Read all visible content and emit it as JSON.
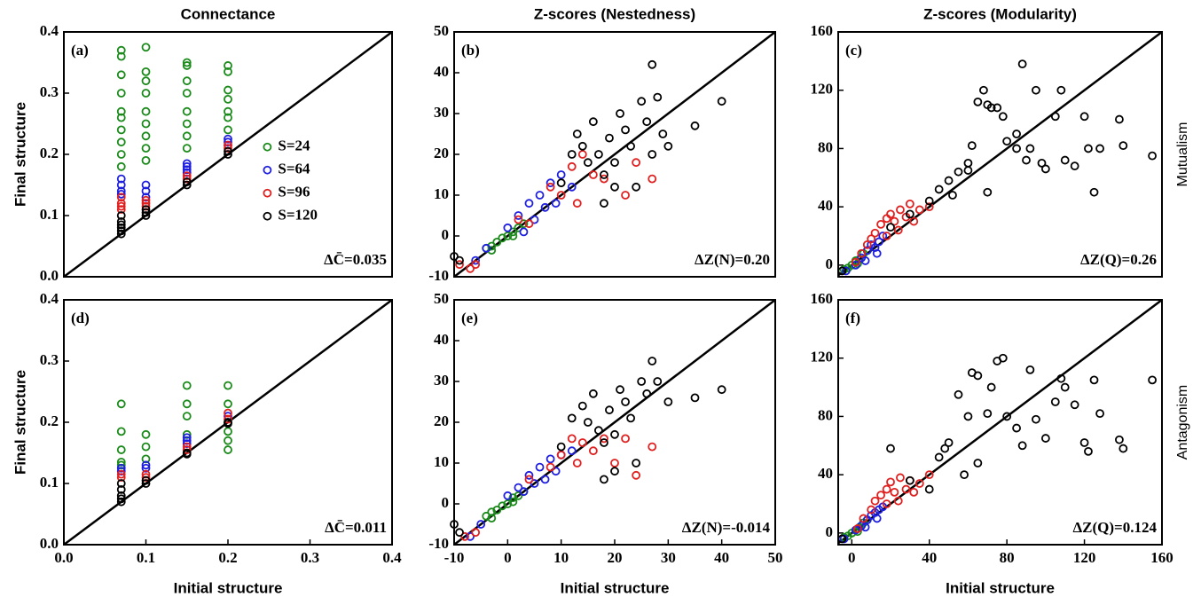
{
  "chart_data": [
    {
      "type": "scatter",
      "title": "Connectance",
      "panel_label": "(a)",
      "annotation": "ΔC̄=0.035",
      "ylabel": "Final structure",
      "xlim": [
        0,
        0.4
      ],
      "ylim": [
        0,
        0.4
      ],
      "yticks": [
        {
          "value": 0,
          "label": "0.0"
        },
        0.1,
        0.2,
        0.3,
        0.4
      ],
      "legend": "center right",
      "series": [
        {
          "name": "S=24",
          "color": "#1a8a1a",
          "x": [
            0.07,
            0.07,
            0.07,
            0.07,
            0.07,
            0.07,
            0.07,
            0.07,
            0.07,
            0.07,
            0.1,
            0.1,
            0.1,
            0.1,
            0.1,
            0.1,
            0.1,
            0.1,
            0.1,
            0.15,
            0.15,
            0.15,
            0.15,
            0.15,
            0.15,
            0.15,
            0.15,
            0.2,
            0.2,
            0.2,
            0.2,
            0.2,
            0.2,
            0.2
          ],
          "values": [
            0.37,
            0.36,
            0.33,
            0.3,
            0.27,
            0.26,
            0.24,
            0.22,
            0.2,
            0.18,
            0.375,
            0.335,
            0.32,
            0.3,
            0.27,
            0.25,
            0.23,
            0.21,
            0.19,
            0.35,
            0.345,
            0.32,
            0.3,
            0.27,
            0.25,
            0.23,
            0.21,
            0.345,
            0.335,
            0.305,
            0.29,
            0.27,
            0.26,
            0.24
          ]
        },
        {
          "name": "S=64",
          "color": "#1f1fe0",
          "x": [
            0.07,
            0.07,
            0.07,
            0.07,
            0.1,
            0.1,
            0.1,
            0.15,
            0.15,
            0.15,
            0.15,
            0.2,
            0.2,
            0.2
          ],
          "values": [
            0.16,
            0.15,
            0.14,
            0.135,
            0.15,
            0.14,
            0.13,
            0.185,
            0.18,
            0.175,
            0.17,
            0.225,
            0.22,
            0.215
          ]
        },
        {
          "name": "S=96",
          "color": "#e01f1f",
          "x": [
            0.07,
            0.07,
            0.07,
            0.07,
            0.1,
            0.1,
            0.1,
            0.15,
            0.15,
            0.2,
            0.2
          ],
          "values": [
            0.13,
            0.12,
            0.115,
            0.11,
            0.125,
            0.12,
            0.115,
            0.165,
            0.16,
            0.215,
            0.21
          ]
        },
        {
          "name": "S=120",
          "color": "#000000",
          "x": [
            0.07,
            0.07,
            0.07,
            0.07,
            0.07,
            0.07,
            0.1,
            0.1,
            0.1,
            0.15,
            0.15,
            0.2,
            0.2
          ],
          "values": [
            0.1,
            0.09,
            0.085,
            0.08,
            0.075,
            0.07,
            0.11,
            0.105,
            0.1,
            0.155,
            0.15,
            0.205,
            0.2
          ]
        }
      ]
    },
    {
      "type": "scatter",
      "title": "Z-scores (Nestedness)",
      "panel_label": "(b)",
      "annotation": "ΔZ(N)=0.20",
      "xlim": [
        -10,
        50
      ],
      "ylim": [
        -10,
        50
      ],
      "yticks": [
        -10,
        0,
        10,
        20,
        30,
        40,
        50
      ],
      "series": [
        {
          "color": "#1a8a1a",
          "x": [
            -4,
            -3,
            -2,
            -1,
            0,
            1,
            2,
            3,
            -3,
            1
          ],
          "values": [
            -3,
            -2.5,
            -1.5,
            -0.5,
            0,
            1,
            2,
            3,
            -3.5,
            0
          ]
        },
        {
          "color": "#1f1fe0",
          "x": [
            -6,
            -4,
            0,
            2,
            4,
            6,
            8,
            10,
            5,
            7,
            3,
            9,
            12
          ],
          "values": [
            -6,
            -3,
            2,
            5,
            8,
            10,
            13,
            15,
            4,
            7,
            1,
            8,
            12
          ]
        },
        {
          "color": "#e01f1f",
          "x": [
            -9,
            -7,
            -6,
            2,
            4,
            8,
            10,
            12,
            14,
            16,
            13,
            18,
            24,
            27,
            22
          ],
          "values": [
            -7,
            -8,
            -7,
            4,
            3,
            12,
            10,
            17,
            20,
            15,
            8,
            14,
            18,
            14,
            10
          ]
        },
        {
          "color": "#000000",
          "x": [
            -10,
            -9,
            10,
            12,
            13,
            14,
            15,
            16,
            17,
            18,
            19,
            20,
            21,
            22,
            23,
            24,
            25,
            26,
            27,
            28,
            29,
            30,
            35,
            40,
            27,
            20,
            18
          ],
          "values": [
            -5,
            -6,
            13,
            20,
            25,
            22,
            18,
            28,
            20,
            15,
            24,
            18,
            30,
            26,
            22,
            12,
            33,
            28,
            20,
            34,
            25,
            22,
            27,
            33,
            42,
            12,
            8
          ]
        }
      ]
    },
    {
      "type": "scatter",
      "title": "Z-scores (Modularity)",
      "panel_label": "(c)",
      "annotation": "ΔZ(Q)=0.26",
      "row_label": "Mutualism",
      "xlim": [
        -7,
        160
      ],
      "ylim": [
        -8,
        160
      ],
      "yticks": [
        0,
        40,
        80,
        120,
        160
      ],
      "series": [
        {
          "color": "#1a8a1a",
          "x": [
            -4,
            -2,
            0,
            2,
            4,
            6,
            8,
            3
          ],
          "values": [
            -3,
            -2,
            0,
            3,
            4,
            8,
            10,
            1
          ]
        },
        {
          "color": "#1f1fe0",
          "x": [
            -3,
            2,
            5,
            8,
            10,
            12,
            14,
            16,
            7,
            13
          ],
          "values": [
            -4,
            0,
            5,
            10,
            14,
            12,
            16,
            20,
            3,
            8
          ]
        },
        {
          "color": "#e01f1f",
          "x": [
            2,
            5,
            8,
            10,
            12,
            15,
            18,
            20,
            22,
            25,
            28,
            30,
            35,
            40,
            18,
            24,
            32
          ],
          "values": [
            2,
            8,
            14,
            18,
            22,
            28,
            32,
            35,
            30,
            38,
            33,
            42,
            38,
            40,
            20,
            24,
            30
          ]
        },
        {
          "color": "#000000",
          "x": [
            -5,
            20,
            30,
            40,
            45,
            50,
            55,
            60,
            62,
            65,
            68,
            70,
            72,
            75,
            78,
            80,
            85,
            88,
            90,
            92,
            95,
            98,
            100,
            105,
            108,
            110,
            115,
            120,
            122,
            125,
            128,
            138,
            140,
            155,
            60,
            52,
            70,
            85
          ],
          "values": [
            -4,
            26,
            35,
            44,
            52,
            58,
            64,
            65,
            82,
            112,
            120,
            110,
            108,
            108,
            102,
            85,
            80,
            138,
            72,
            80,
            120,
            70,
            66,
            102,
            120,
            72,
            68,
            102,
            80,
            50,
            80,
            100,
            82,
            75,
            70,
            48,
            50,
            90
          ]
        }
      ]
    },
    {
      "type": "scatter",
      "panel_label": "(d)",
      "annotation": "ΔC̄=0.011",
      "ylabel": "Final structure",
      "xlabel": "Initial structure",
      "xlim": [
        0,
        0.4
      ],
      "ylim": [
        0,
        0.4
      ],
      "xticks": [
        {
          "value": 0,
          "label": "0.0"
        },
        0.1,
        0.2,
        0.3,
        0.4
      ],
      "yticks": [
        {
          "value": 0,
          "label": "0.0"
        },
        0.1,
        0.2,
        0.3,
        0.4
      ],
      "series": [
        {
          "color": "#1a8a1a",
          "x": [
            0.07,
            0.07,
            0.07,
            0.07,
            0.07,
            0.1,
            0.1,
            0.1,
            0.15,
            0.15,
            0.15,
            0.15,
            0.2,
            0.2,
            0.2,
            0.2,
            0.2,
            0.2
          ],
          "values": [
            0.23,
            0.185,
            0.155,
            0.135,
            0.13,
            0.18,
            0.16,
            0.14,
            0.26,
            0.23,
            0.21,
            0.18,
            0.26,
            0.23,
            0.2,
            0.185,
            0.17,
            0.155
          ]
        },
        {
          "color": "#1f1fe0",
          "x": [
            0.07,
            0.07,
            0.1,
            0.1,
            0.15,
            0.15,
            0.15,
            0.2
          ],
          "values": [
            0.125,
            0.12,
            0.13,
            0.125,
            0.175,
            0.17,
            0.165,
            0.21
          ]
        },
        {
          "color": "#e01f1f",
          "x": [
            0.07,
            0.07,
            0.1,
            0.1,
            0.15,
            0.15,
            0.2,
            0.2
          ],
          "values": [
            0.115,
            0.11,
            0.115,
            0.11,
            0.16,
            0.155,
            0.215,
            0.205
          ]
        },
        {
          "color": "#000000",
          "x": [
            0.07,
            0.07,
            0.07,
            0.07,
            0.07,
            0.1,
            0.1,
            0.15,
            0.15,
            0.2,
            0.2
          ],
          "values": [
            0.1,
            0.09,
            0.08,
            0.075,
            0.07,
            0.105,
            0.1,
            0.15,
            0.148,
            0.2,
            0.198
          ]
        }
      ]
    },
    {
      "type": "scatter",
      "panel_label": "(e)",
      "annotation": "ΔZ(N)=-0.014",
      "xlabel": "Initial structure",
      "xlim": [
        -10,
        50
      ],
      "ylim": [
        -10,
        50
      ],
      "xticks": [
        -10,
        0,
        10,
        20,
        30,
        40,
        50
      ],
      "yticks": [
        -10,
        0,
        10,
        20,
        30,
        40,
        50
      ],
      "series": [
        {
          "color": "#1a8a1a",
          "x": [
            -4,
            -3,
            -2,
            -1,
            0,
            1,
            2,
            3,
            -3,
            1
          ],
          "values": [
            -3,
            -2,
            -1.5,
            -0.5,
            0,
            1.5,
            2,
            3,
            -3.5,
            0.5
          ]
        },
        {
          "color": "#1f1fe0",
          "x": [
            -7,
            -5,
            0,
            2,
            4,
            6,
            8,
            10,
            5,
            7,
            3,
            9,
            12
          ],
          "values": [
            -8,
            -5,
            2,
            4,
            7,
            9,
            11,
            12,
            5,
            6,
            3,
            8,
            13
          ]
        },
        {
          "color": "#e01f1f",
          "x": [
            -8,
            -6,
            4,
            8,
            10,
            12,
            14,
            16,
            13,
            18,
            22,
            27,
            24,
            20
          ],
          "values": [
            -8,
            -7,
            6,
            9,
            12,
            16,
            15,
            13,
            10,
            16,
            16,
            14,
            7,
            10
          ]
        },
        {
          "color": "#000000",
          "x": [
            -10,
            -9,
            10,
            12,
            14,
            15,
            16,
            17,
            18,
            19,
            20,
            21,
            22,
            23,
            24,
            25,
            26,
            27,
            28,
            30,
            35,
            40,
            20,
            18
          ],
          "values": [
            -5,
            -7,
            14,
            21,
            24,
            20,
            27,
            18,
            15,
            23,
            17,
            28,
            25,
            21,
            10,
            30,
            27,
            35,
            30,
            25,
            26,
            28,
            8,
            6
          ]
        }
      ]
    },
    {
      "type": "scatter",
      "panel_label": "(f)",
      "annotation": "ΔZ(Q)=0.124",
      "xlabel": "Initial structure",
      "row_label": "Antagonism",
      "xlim": [
        -7,
        160
      ],
      "ylim": [
        -8,
        160
      ],
      "xticks": [
        0,
        40,
        80,
        120,
        160
      ],
      "yticks": [
        0,
        40,
        80,
        120,
        160
      ],
      "series": [
        {
          "color": "#1a8a1a",
          "x": [
            -4,
            -2,
            0,
            2,
            4,
            6,
            8,
            3
          ],
          "values": [
            -3,
            -2,
            0,
            2,
            4,
            7,
            9,
            1
          ]
        },
        {
          "color": "#1f1fe0",
          "x": [
            -4,
            2,
            5,
            8,
            10,
            12,
            14,
            16,
            7,
            13
          ],
          "values": [
            -4,
            2,
            5,
            9,
            12,
            14,
            16,
            18,
            4,
            10
          ]
        },
        {
          "color": "#e01f1f",
          "x": [
            3,
            6,
            10,
            12,
            15,
            18,
            20,
            22,
            25,
            28,
            30,
            35,
            40,
            18,
            24,
            32
          ],
          "values": [
            3,
            10,
            16,
            22,
            26,
            30,
            35,
            28,
            38,
            30,
            36,
            34,
            40,
            20,
            22,
            28
          ]
        },
        {
          "color": "#000000",
          "x": [
            -5,
            20,
            30,
            40,
            45,
            48,
            50,
            55,
            58,
            62,
            65,
            70,
            72,
            75,
            78,
            80,
            85,
            88,
            92,
            95,
            100,
            105,
            108,
            110,
            115,
            120,
            122,
            125,
            128,
            138,
            140,
            155,
            65,
            60
          ],
          "values": [
            -4,
            58,
            36,
            30,
            52,
            58,
            62,
            95,
            40,
            110,
            108,
            82,
            100,
            118,
            120,
            80,
            72,
            60,
            112,
            78,
            65,
            90,
            106,
            100,
            88,
            62,
            56,
            105,
            82,
            64,
            58,
            105,
            48,
            80
          ]
        }
      ]
    }
  ]
}
